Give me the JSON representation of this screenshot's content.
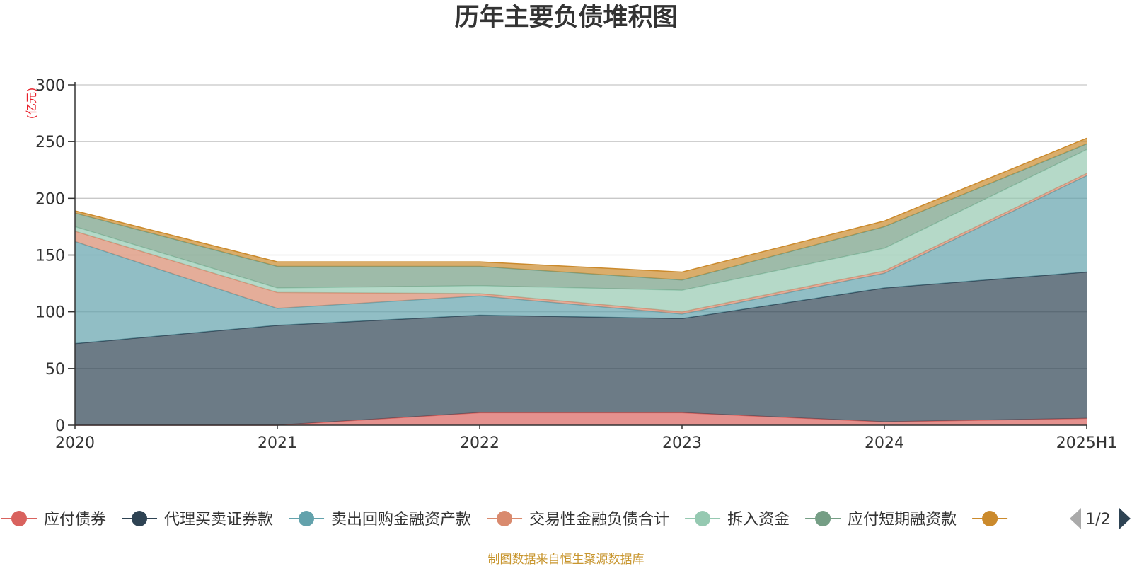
{
  "chart_data": {
    "type": "area",
    "stacked": true,
    "title": "历年主要负债堆积图",
    "unit_label": "(亿元)",
    "categories": [
      "2020",
      "2021",
      "2022",
      "2023",
      "2024",
      "2025H1"
    ],
    "ylim": [
      0,
      300
    ],
    "yticks": [
      0,
      50,
      100,
      150,
      200,
      250,
      300
    ],
    "grid": true,
    "legend_position": "bottom",
    "series": [
      {
        "name": "应付债券",
        "color": "#d9625e",
        "values": [
          0,
          0,
          11,
          11,
          3,
          6
        ]
      },
      {
        "name": "代理买卖证券款",
        "color": "#2e4353",
        "values": [
          72,
          88,
          86,
          83,
          118,
          129
        ]
      },
      {
        "name": "卖出回购金融资产款",
        "color": "#63a2ac",
        "values": [
          90,
          15,
          17,
          4,
          13,
          85
        ]
      },
      {
        "name": "交易性金融负债合计",
        "color": "#d98a6e",
        "values": [
          9,
          14,
          2,
          2,
          2,
          2
        ]
      },
      {
        "name": "拆入资金",
        "color": "#95c9b1",
        "values": [
          4,
          4,
          7,
          19,
          20,
          21
        ]
      },
      {
        "name": "应付短期融资款",
        "color": "#759e85",
        "values": [
          12,
          19,
          17,
          9,
          19,
          5
        ]
      },
      {
        "name": "",
        "color": "#cb8a2c",
        "values": [
          2,
          4,
          4,
          7,
          5,
          5
        ]
      }
    ]
  },
  "legend": {
    "page_indicator": "1/2",
    "prev_icon": "triangle-left-icon",
    "next_icon": "triangle-right-icon"
  },
  "footer": {
    "source": "制图数据来自恒生聚源数据库"
  }
}
